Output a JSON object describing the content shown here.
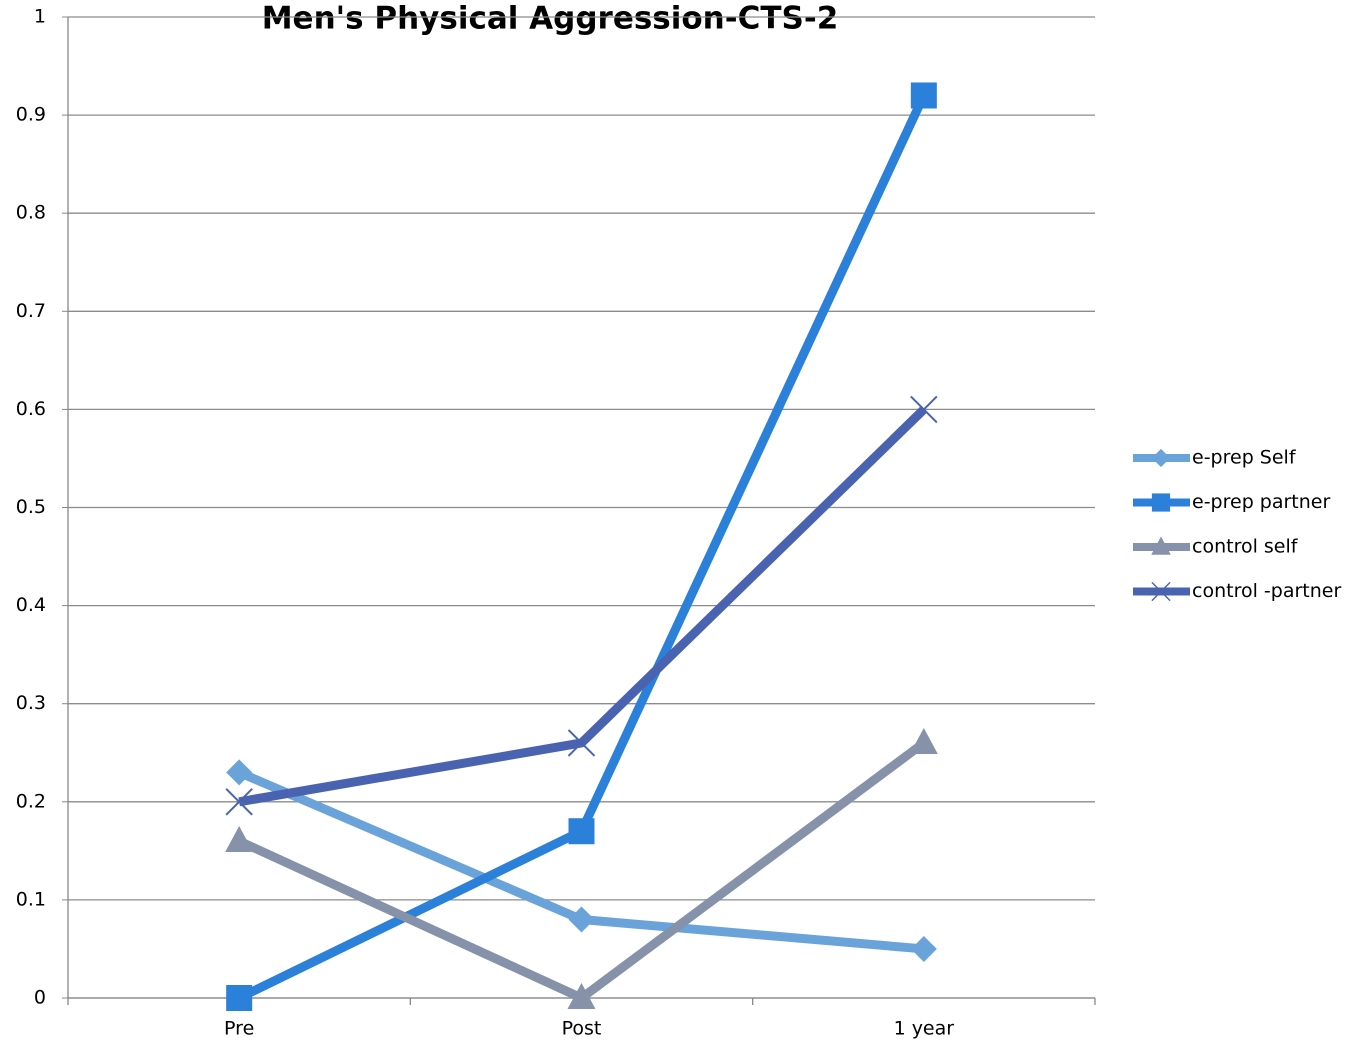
{
  "chart_data": {
    "type": "line",
    "title": "Men's Physical Aggression-CTS-2",
    "categories": [
      "Pre",
      "Post",
      "1 year"
    ],
    "series": [
      {
        "name": "e-prep Self",
        "color": "#6aa3d9",
        "marker": "diamond",
        "values": [
          0.23,
          0.08,
          0.05
        ]
      },
      {
        "name": "e-prep partner",
        "color": "#2b80d9",
        "marker": "square",
        "values": [
          0,
          0.17,
          0.92
        ]
      },
      {
        "name": "control self",
        "color": "#8592aa",
        "marker": "triangle",
        "values": [
          0.16,
          0,
          0.26
        ]
      },
      {
        "name": "control -partner",
        "color": "#4a63b0",
        "marker": "x",
        "values": [
          0.2,
          0.26,
          0.6
        ]
      }
    ],
    "ylim": [
      0,
      1
    ],
    "yticks": [
      0,
      0.1,
      0.2,
      0.3,
      0.4,
      0.5,
      0.6,
      0.7,
      0.8,
      0.9,
      1
    ],
    "grid": true,
    "legend": "right"
  }
}
